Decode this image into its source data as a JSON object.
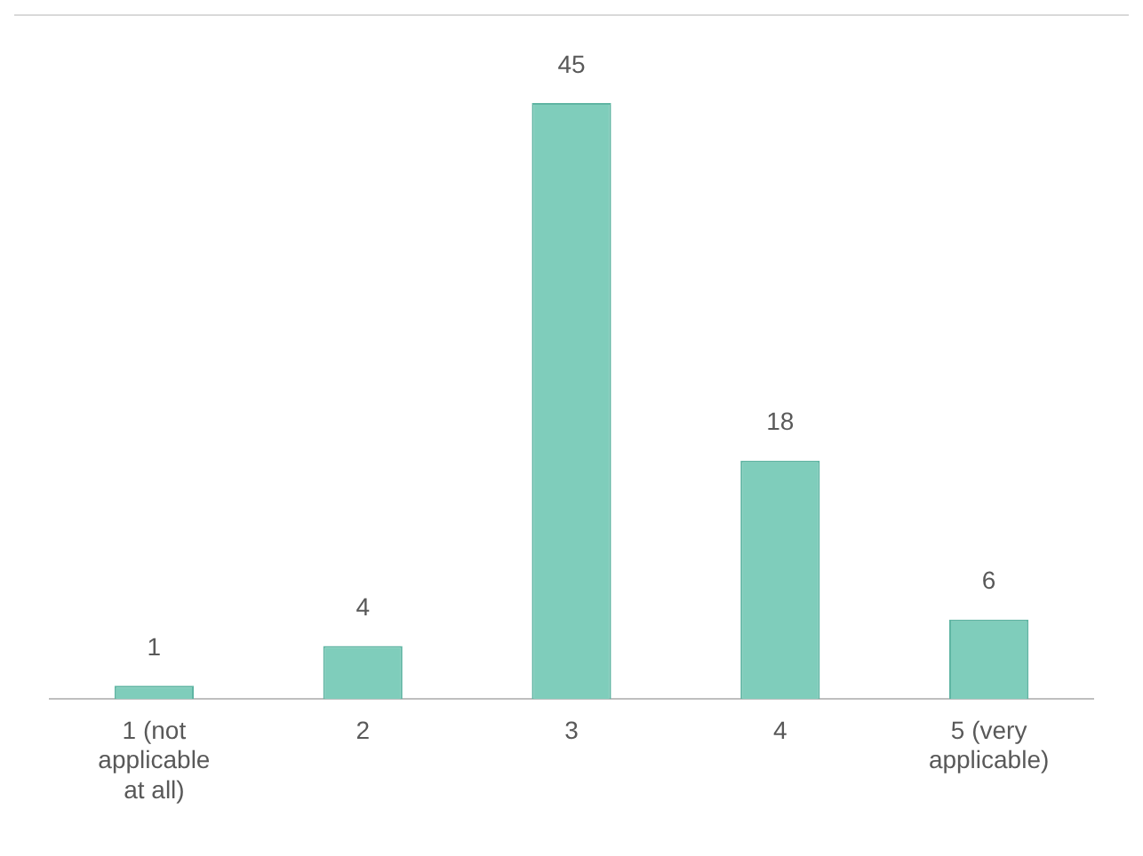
{
  "chart_data": {
    "type": "bar",
    "categories": [
      "1 (not applicable at all)",
      "2",
      "3",
      "4",
      "5 (very applicable)"
    ],
    "values": [
      1,
      4,
      45,
      18,
      6
    ],
    "color": "#7fcdbb",
    "data_labels": true,
    "grid": false,
    "legend": false
  }
}
